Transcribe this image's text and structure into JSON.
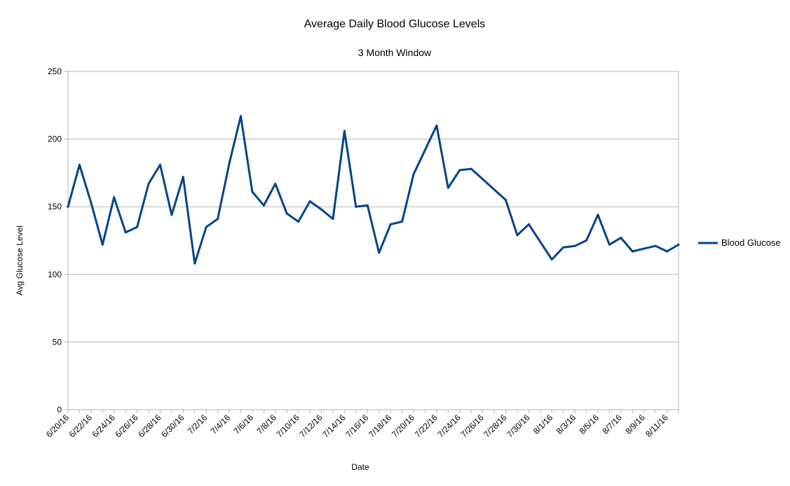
{
  "chart_data": {
    "type": "line",
    "title": "Average Daily Blood Glucose Levels",
    "subtitle": "3 Month Window",
    "xlabel": "Date",
    "ylabel": "Avg Glucose Level",
    "ylim": [
      0,
      250
    ],
    "yticks": [
      0,
      50,
      100,
      150,
      200,
      250
    ],
    "grid": "horizontal",
    "legend_position": "right",
    "line_color": "#004586",
    "grid_color": "#b3b3b3",
    "x_tick_labels": [
      "6/20/16",
      "6/22/16",
      "6/24/16",
      "6/26/16",
      "6/28/16",
      "6/30/16",
      "7/2/16",
      "7/4/16",
      "7/6/16",
      "7/8/16",
      "7/10/16",
      "7/12/16",
      "7/14/16",
      "7/16/16",
      "7/18/16",
      "7/20/16",
      "7/22/16",
      "7/24/16",
      "7/26/16",
      "7/28/16",
      "7/30/16",
      "8/1/16",
      "8/3/16",
      "8/5/16",
      "8/7/16",
      "8/9/16",
      "8/11/16"
    ],
    "categories": [
      "6/20/16",
      "6/21/16",
      "6/22/16",
      "6/23/16",
      "6/24/16",
      "6/25/16",
      "6/26/16",
      "6/27/16",
      "6/28/16",
      "6/29/16",
      "6/30/16",
      "7/1/16",
      "7/2/16",
      "7/3/16",
      "7/4/16",
      "7/5/16",
      "7/6/16",
      "7/7/16",
      "7/8/16",
      "7/9/16",
      "7/10/16",
      "7/11/16",
      "7/12/16",
      "7/13/16",
      "7/14/16",
      "7/15/16",
      "7/16/16",
      "7/17/16",
      "7/18/16",
      "7/19/16",
      "7/20/16",
      "7/21/16",
      "7/22/16",
      "7/23/16",
      "7/24/16",
      "7/25/16",
      "7/26/16",
      "7/27/16",
      "7/28/16",
      "7/29/16",
      "7/30/16",
      "7/31/16",
      "8/1/16",
      "8/2/16",
      "8/3/16",
      "8/4/16",
      "8/5/16",
      "8/6/16",
      "8/7/16",
      "8/8/16",
      "8/9/16",
      "8/10/16",
      "8/11/16",
      "8/12/16"
    ],
    "series": [
      {
        "name": "Blood Glucose",
        "values": [
          150,
          181,
          153,
          122,
          157,
          131,
          135,
          167,
          181,
          144,
          172,
          108,
          135,
          141,
          182,
          217,
          161,
          151,
          167,
          145,
          139,
          154,
          148,
          141,
          206,
          150,
          151,
          116,
          137,
          139,
          174,
          null,
          210,
          164,
          177,
          178,
          null,
          null,
          155,
          129,
          137,
          null,
          111,
          120,
          121,
          125,
          144,
          122,
          127,
          117,
          119,
          121,
          117,
          122
        ]
      }
    ]
  }
}
